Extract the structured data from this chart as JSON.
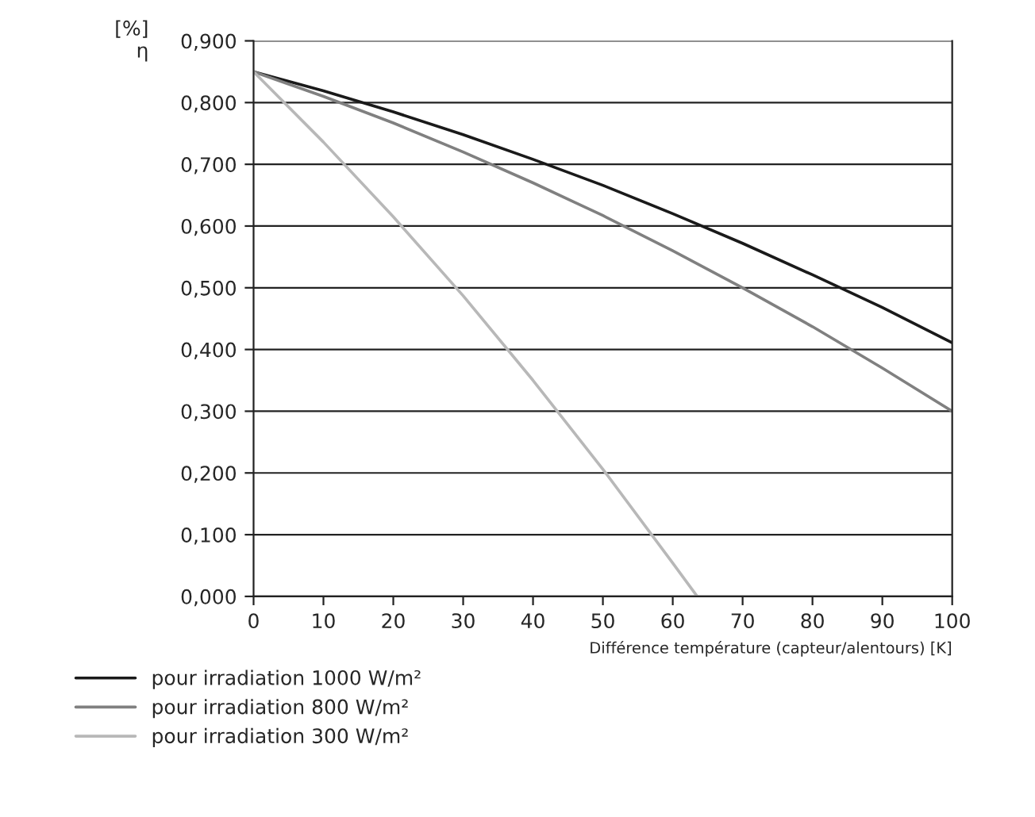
{
  "chart_data": {
    "type": "line",
    "ylabel": "[%]\nη",
    "xlabel": "Différence température (capteur/alentours) [K]",
    "xlim": [
      0,
      100
    ],
    "xticks": [
      0,
      10,
      20,
      30,
      40,
      50,
      60,
      70,
      80,
      90,
      100
    ],
    "ylim": [
      0,
      0.9
    ],
    "yticks": [
      {
        "value": 0,
        "label": "0,000"
      },
      {
        "value": 0.1,
        "label": "0,100"
      },
      {
        "value": 0.2,
        "label": "0,200"
      },
      {
        "value": 0.3,
        "label": "0,300"
      },
      {
        "value": 0.4,
        "label": "0,400"
      },
      {
        "value": 0.5,
        "label": "0,500"
      },
      {
        "value": 0.6,
        "label": "0,600"
      },
      {
        "value": 0.7,
        "label": "0,700"
      },
      {
        "value": 0.8,
        "label": "0,800"
      },
      {
        "value": 0.9,
        "label": "0,900"
      }
    ],
    "grid": "y",
    "legend": "bottom",
    "marker": "none",
    "line_style": "solid",
    "series": [
      {
        "name": "pour irradiation 1000 W/m²",
        "color": "#1a1a1a",
        "x": [
          0,
          10,
          20,
          30,
          40,
          50,
          60,
          70,
          80,
          90,
          100
        ],
        "values": [
          0.85,
          0.819,
          0.785,
          0.748,
          0.708,
          0.666,
          0.62,
          0.572,
          0.521,
          0.468,
          0.411
        ]
      },
      {
        "name": "pour irradiation 800 W/m²",
        "color": "#808080",
        "x": [
          0,
          10,
          20,
          30,
          40,
          50,
          60,
          70,
          80,
          90,
          100
        ],
        "values": [
          0.85,
          0.81,
          0.767,
          0.72,
          0.67,
          0.617,
          0.56,
          0.5,
          0.437,
          0.37,
          0.3
        ]
      },
      {
        "name": "pour irradiation 300 W/m²",
        "color": "#b8b8b8",
        "x": [
          0,
          10,
          20,
          30,
          40,
          50,
          60,
          63.5
        ],
        "values": [
          0.85,
          0.736,
          0.615,
          0.487,
          0.35,
          0.206,
          0.054,
          0.0
        ]
      }
    ]
  }
}
